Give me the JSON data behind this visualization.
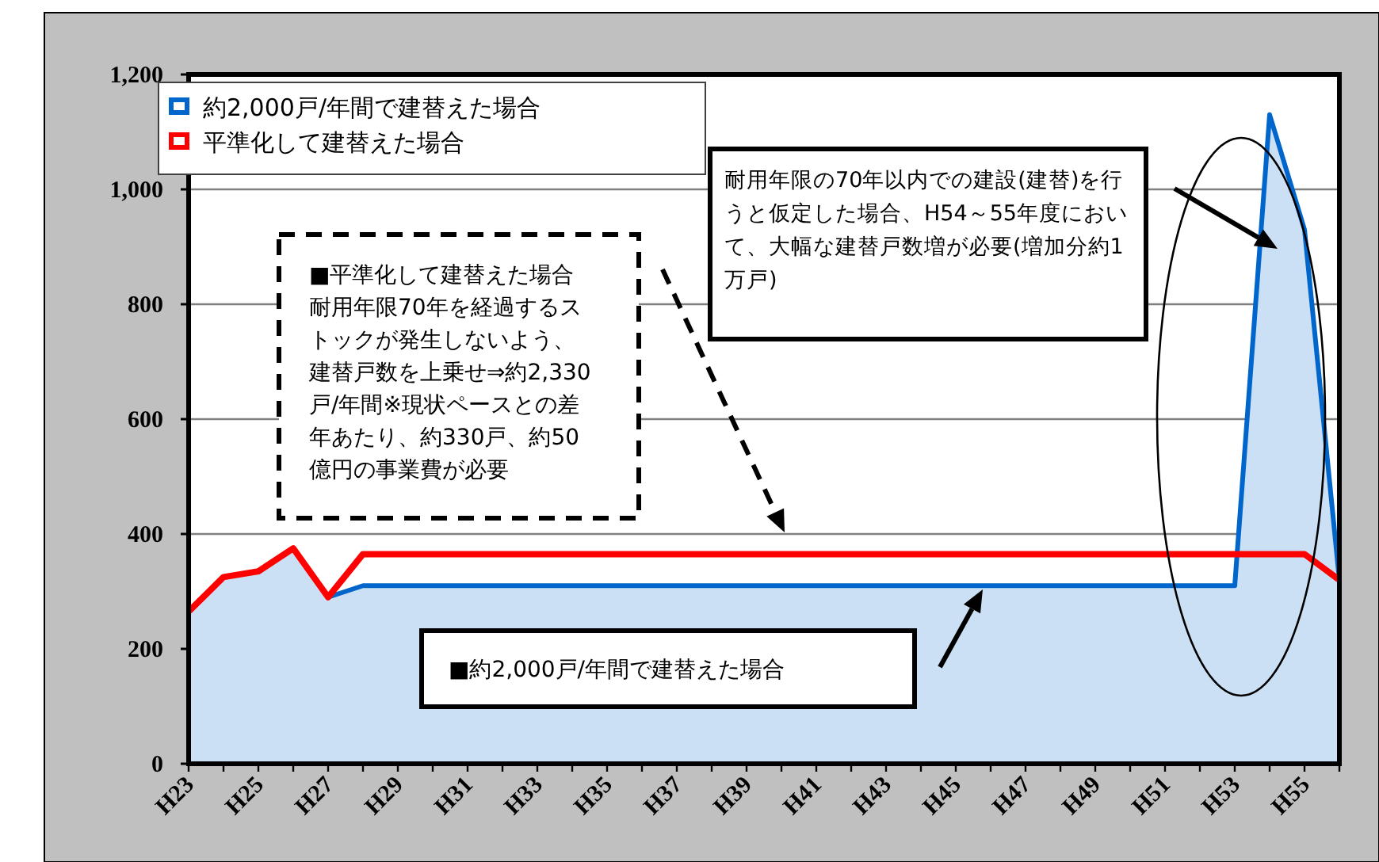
{
  "chart_data": {
    "type": "area",
    "categories": [
      "H23",
      null,
      "H25",
      null,
      "H27",
      null,
      "H29",
      null,
      "H31",
      null,
      "H33",
      null,
      "H35",
      null,
      "H37",
      null,
      "H39",
      null,
      "H41",
      null,
      "H43",
      null,
      "H45",
      null,
      "H47",
      null,
      "H49",
      null,
      "H51",
      null,
      "H53",
      null,
      "H55",
      null
    ],
    "series": [
      {
        "name": "約2,000戸/年間で建替えた場合",
        "color": "#0066cc",
        "values": [
          265,
          325,
          335,
          375,
          290,
          310,
          310,
          310,
          310,
          310,
          310,
          310,
          310,
          310,
          310,
          310,
          310,
          310,
          310,
          310,
          310,
          310,
          310,
          310,
          310,
          310,
          310,
          310,
          310,
          310,
          310,
          1130,
          930,
          320
        ]
      },
      {
        "name": "平準化して建替えた場合",
        "type": "line",
        "color": "#ff0000",
        "values": [
          265,
          325,
          335,
          375,
          290,
          365,
          365,
          365,
          365,
          365,
          365,
          365,
          365,
          365,
          365,
          365,
          365,
          365,
          365,
          365,
          365,
          365,
          365,
          365,
          365,
          365,
          365,
          365,
          365,
          365,
          365,
          365,
          365,
          320
        ]
      }
    ],
    "ylim": [
      0,
      1200
    ],
    "yticks": [
      0,
      {
        "value": 200,
        "label": "200"
      },
      {
        "value": 400,
        "label": "400"
      },
      {
        "value": 600,
        "label": "600"
      },
      {
        "value": 800,
        "label": "800"
      },
      {
        "value": 1000,
        "label": "1,000"
      },
      {
        "value": 1200,
        "label": "1,200"
      }
    ],
    "grid": "y",
    "legend": "top left",
    "annotations": [
      "■平準化して建替えた場合耐用年限70年を経過するストックが発生しないよう、建替戸数を上乗せ⇒約2,330戸/年間※現状ペースとの差年あたり、約330戸、約50億円の事業費が必要",
      "耐用年限の70年以内での建設(建替)を行うと仮定した場合、H54～55年度において、大幅な建替戸数増が必要(増加分約1万戸)",
      "■約2,000戸/年間で建替えた場合"
    ]
  }
}
